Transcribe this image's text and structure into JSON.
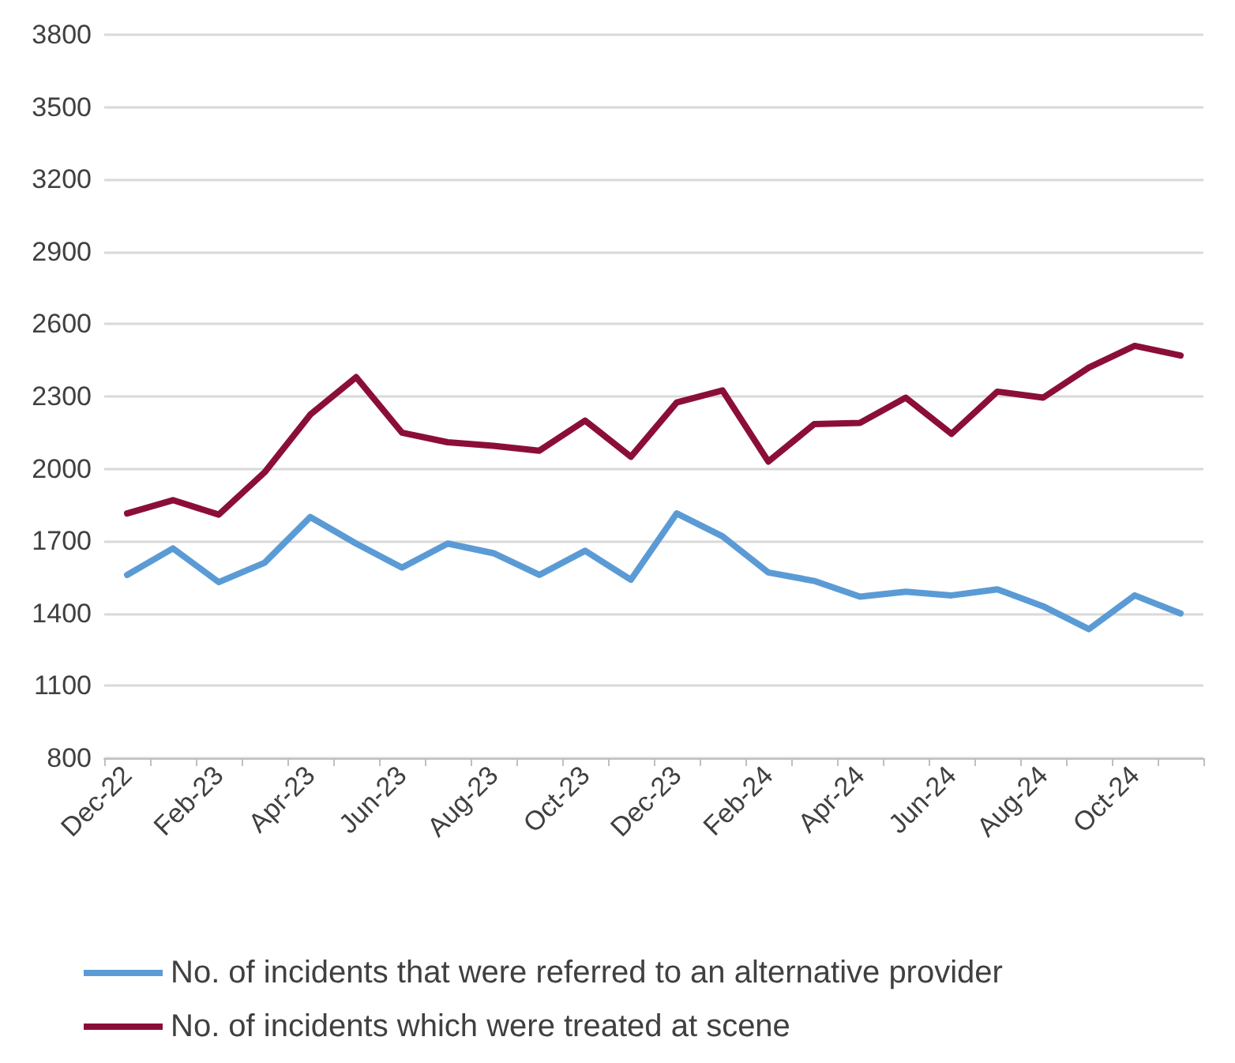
{
  "chart_data": {
    "type": "line",
    "categories": [
      "Dec-22",
      null,
      "Feb-23",
      null,
      "Apr-23",
      null,
      "Jun-23",
      null,
      "Aug-23",
      null,
      "Oct-23",
      null,
      "Dec-23",
      null,
      "Feb-24",
      null,
      "Apr-24",
      null,
      "Jun-24",
      null,
      "Aug-24",
      null,
      "Oct-24",
      null
    ],
    "series": [
      {
        "name": "No. of incidents that were referred to an alternative provider",
        "color": "#5b9bd5",
        "values": [
          1560,
          1670,
          1530,
          1610,
          1800,
          1690,
          1590,
          1690,
          1650,
          1560,
          1660,
          1540,
          1815,
          1720,
          1570,
          1535,
          1470,
          1490,
          1475,
          1500,
          1430,
          1335,
          1475,
          1400
        ]
      },
      {
        "name": "No. of incidents which were treated at scene",
        "color": "#8b0e3a",
        "values": [
          1815,
          1870,
          1810,
          1985,
          2225,
          2380,
          2150,
          2110,
          2095,
          2075,
          2200,
          2050,
          2275,
          2325,
          2030,
          2185,
          2190,
          2295,
          2145,
          2320,
          2295,
          2420,
          2510,
          2470
        ]
      }
    ],
    "ylim": [
      800,
      3800
    ],
    "yticks": [
      800,
      1100,
      1400,
      1700,
      2000,
      2300,
      2600,
      2900,
      3200,
      3500,
      3800
    ],
    "grid": "y",
    "legend": "bottom",
    "marker": "none",
    "line_style": "solid"
  }
}
